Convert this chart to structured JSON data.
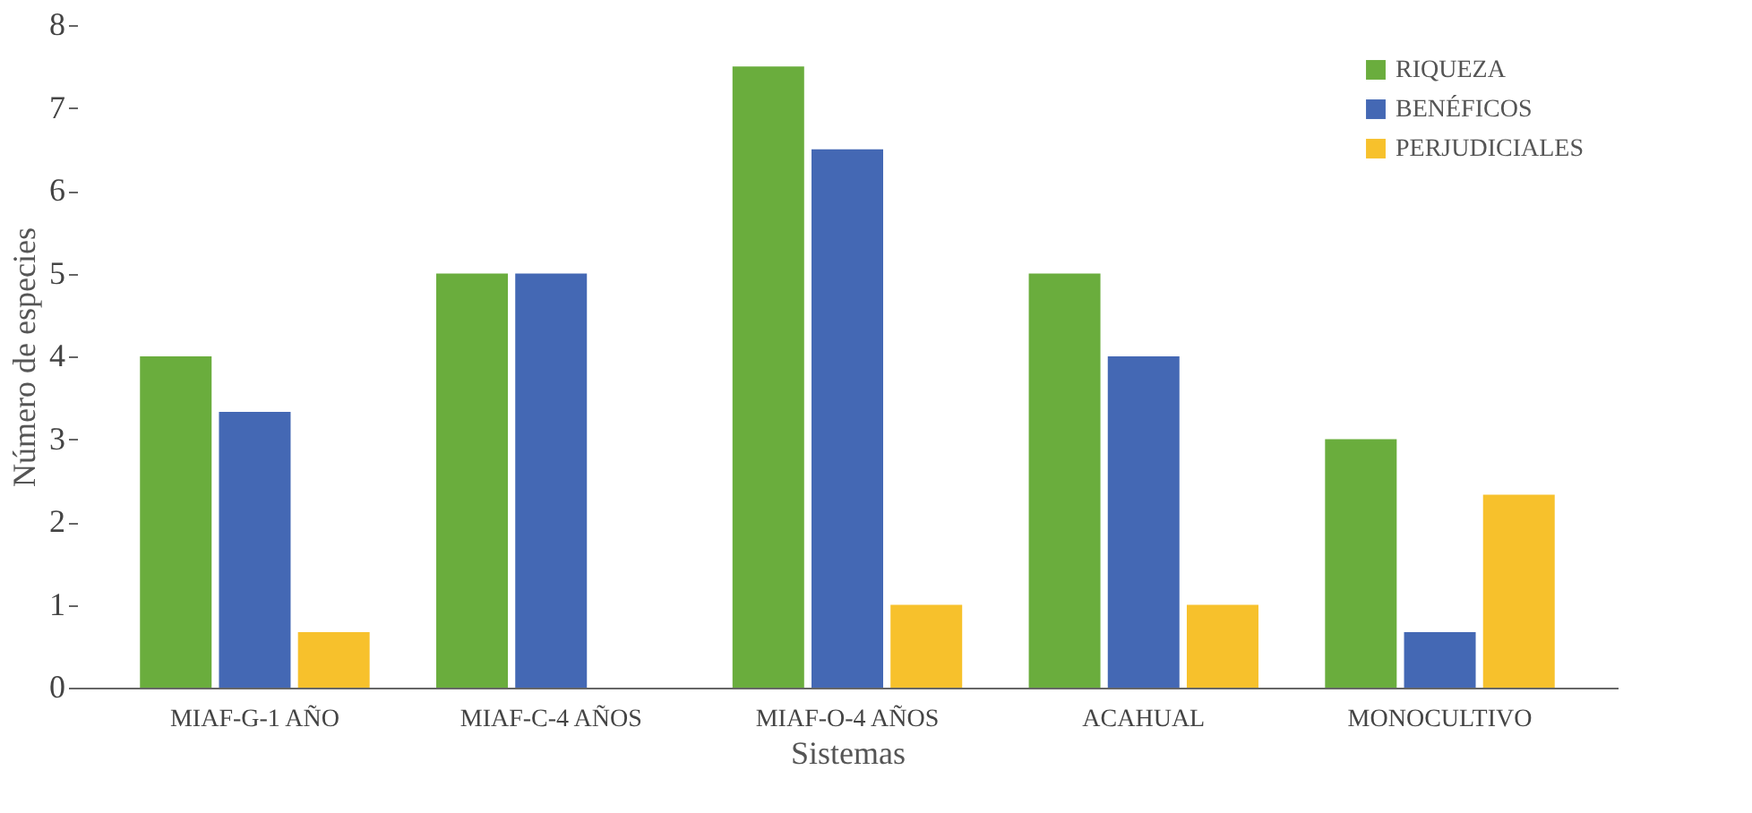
{
  "chart_data": {
    "type": "bar",
    "xlabel": "Sistemas",
    "ylabel": "Número de especies",
    "categories": [
      "MIAF-G-1 AÑO",
      "MIAF-C-4 AÑOS",
      "MIAF-O-4 AÑOS",
      "ACAHUAL",
      "MONOCULTIVO"
    ],
    "series": [
      {
        "name": "RIQUEZA",
        "color": "#6aad3d",
        "values": [
          4,
          5,
          7.5,
          5,
          3
        ]
      },
      {
        "name": "BENÉFICOS",
        "color": "#4468b4",
        "values": [
          3.33,
          5,
          6.5,
          4,
          0.67
        ]
      },
      {
        "name": "PERJUDICIALES",
        "color": "#f7c12c",
        "values": [
          0.67,
          0,
          1,
          1,
          2.33
        ]
      }
    ],
    "ylim": [
      0,
      8
    ],
    "yticks": [
      0,
      1,
      2,
      3,
      4,
      5,
      6,
      7,
      8
    ],
    "grid": false,
    "legend": "top right"
  }
}
